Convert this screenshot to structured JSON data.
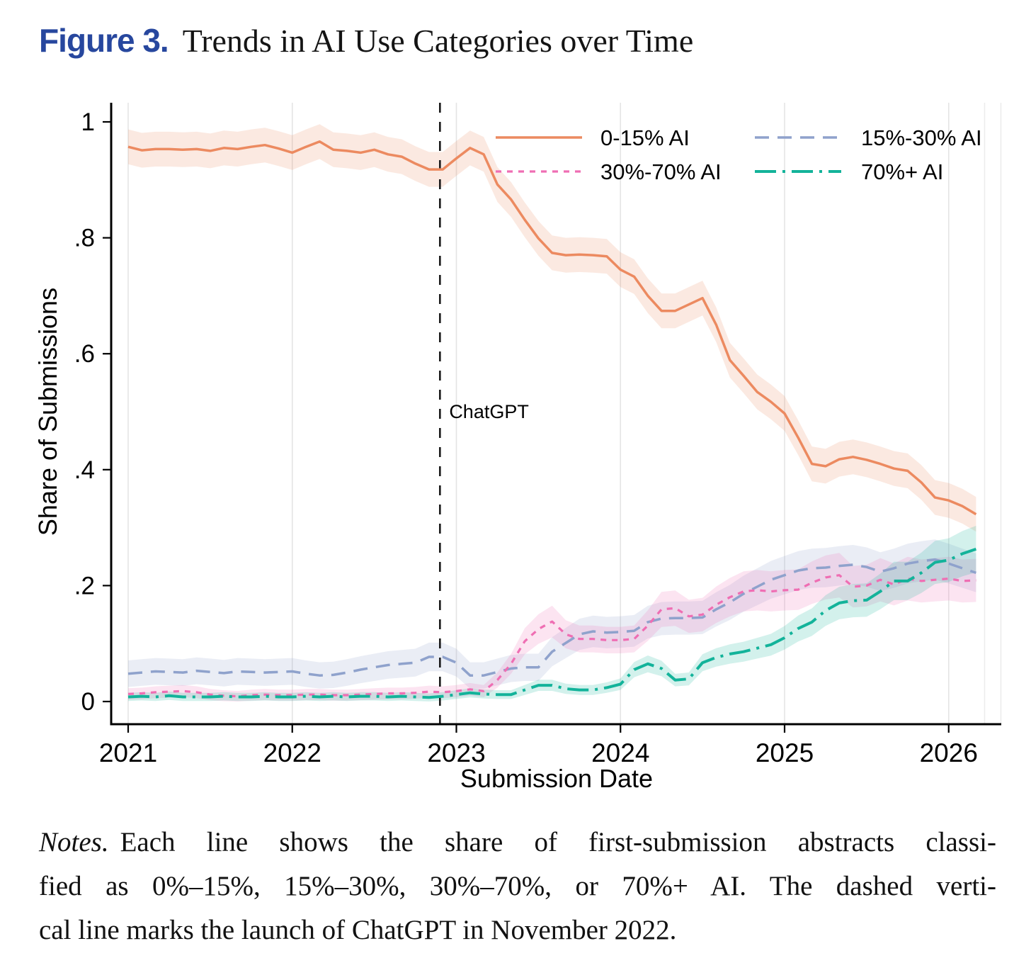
{
  "title": {
    "figure_label": "Figure 3.",
    "text": "Trends in AI Use Categories over Time",
    "accent_color": "#27479E"
  },
  "notes": {
    "label": "Notes.",
    "lines": [
      "Each line shows the share of first-submission abstracts classi-",
      "fied as 0%–15%, 15%–30%, 30%–70%, or 70%+ AI. The dashed verti-",
      "cal line marks the launch of ChatGPT in November 2022."
    ]
  },
  "chart_data": {
    "type": "line",
    "x_axis": {
      "label": "Submission Date",
      "ticks": [
        "2021",
        "2022",
        "2023",
        "2024",
        "2025",
        "2026"
      ],
      "range_years": [
        2020.9,
        2026.35
      ]
    },
    "y_axis": {
      "label": "Share of Submissions",
      "range": [
        0,
        1
      ],
      "ticks": [
        {
          "v": 0.0,
          "label": "0"
        },
        {
          "v": 0.2,
          "label": ".2"
        },
        {
          "v": 0.4,
          "label": ".4"
        },
        {
          "v": 0.6,
          "label": ".6"
        },
        {
          "v": 0.8,
          "label": ".8"
        },
        {
          "v": 1.0,
          "label": "1"
        }
      ]
    },
    "x_start": "2021-01",
    "x_step_months": 1,
    "annotation": {
      "label": "ChatGPT",
      "date": "2022-11",
      "x_year": 2022.9
    },
    "grid_color": "#E4E4E4",
    "series": [
      {
        "name": "0-15% AI",
        "color": "#EC8A60",
        "dash": "solid",
        "band_half": [
          0.03,
          0.0
        ],
        "values": [
          0.957,
          0.951,
          0.953,
          0.953,
          0.952,
          0.953,
          0.95,
          0.955,
          0.953,
          0.957,
          0.96,
          0.954,
          0.947,
          0.957,
          0.966,
          0.952,
          0.95,
          0.947,
          0.952,
          0.944,
          0.94,
          0.928,
          0.918,
          0.918,
          0.937,
          0.955,
          0.944,
          0.892,
          0.866,
          0.831,
          0.799,
          0.774,
          0.77,
          0.771,
          0.77,
          0.768,
          0.745,
          0.733,
          0.7,
          0.674,
          0.674,
          0.685,
          0.696,
          0.65,
          0.589,
          0.562,
          0.534,
          0.517,
          0.497,
          0.455,
          0.41,
          0.406,
          0.418,
          0.422,
          0.417,
          0.41,
          0.402,
          0.398,
          0.378,
          0.352,
          0.347,
          0.337,
          0.323
        ]
      },
      {
        "name": "15%-30% AI",
        "color": "#8FA2CC",
        "dash": "20 12",
        "band_half": [
          0.02,
          0.06
        ],
        "values": [
          0.048,
          0.05,
          0.052,
          0.051,
          0.05,
          0.053,
          0.051,
          0.049,
          0.052,
          0.051,
          0.05,
          0.051,
          0.052,
          0.048,
          0.045,
          0.046,
          0.05,
          0.055,
          0.059,
          0.063,
          0.065,
          0.067,
          0.077,
          0.077,
          0.067,
          0.045,
          0.045,
          0.051,
          0.057,
          0.059,
          0.059,
          0.086,
          0.101,
          0.116,
          0.121,
          0.119,
          0.12,
          0.122,
          0.137,
          0.143,
          0.144,
          0.144,
          0.145,
          0.159,
          0.171,
          0.186,
          0.198,
          0.21,
          0.218,
          0.226,
          0.23,
          0.231,
          0.234,
          0.236,
          0.232,
          0.224,
          0.23,
          0.238,
          0.242,
          0.245,
          0.238,
          0.23,
          0.222
        ]
      },
      {
        "name": "30%-70% AI",
        "color": "#EF6EB3",
        "dash": "8 8",
        "band_half": [
          0.008,
          0.14
        ],
        "values": [
          0.013,
          0.014,
          0.016,
          0.017,
          0.018,
          0.016,
          0.012,
          0.01,
          0.009,
          0.011,
          0.012,
          0.011,
          0.011,
          0.012,
          0.012,
          0.011,
          0.011,
          0.012,
          0.013,
          0.014,
          0.014,
          0.015,
          0.017,
          0.016,
          0.018,
          0.021,
          0.018,
          0.037,
          0.065,
          0.104,
          0.125,
          0.138,
          0.116,
          0.108,
          0.108,
          0.106,
          0.106,
          0.108,
          0.131,
          0.159,
          0.161,
          0.147,
          0.15,
          0.167,
          0.18,
          0.19,
          0.192,
          0.19,
          0.192,
          0.193,
          0.205,
          0.214,
          0.218,
          0.198,
          0.2,
          0.21,
          0.202,
          0.212,
          0.208,
          0.21,
          0.212,
          0.208,
          0.209
        ]
      },
      {
        "name": "70%+ AI",
        "color": "#13B39A",
        "dash": "30 9 4 9",
        "band_half": [
          0.006,
          0.13
        ],
        "values": [
          0.008,
          0.009,
          0.008,
          0.01,
          0.008,
          0.008,
          0.008,
          0.009,
          0.008,
          0.008,
          0.009,
          0.008,
          0.008,
          0.009,
          0.008,
          0.009,
          0.008,
          0.009,
          0.009,
          0.008,
          0.009,
          0.008,
          0.007,
          0.009,
          0.012,
          0.015,
          0.013,
          0.012,
          0.012,
          0.02,
          0.028,
          0.028,
          0.022,
          0.02,
          0.02,
          0.024,
          0.03,
          0.055,
          0.065,
          0.057,
          0.037,
          0.039,
          0.067,
          0.076,
          0.082,
          0.086,
          0.092,
          0.098,
          0.11,
          0.126,
          0.137,
          0.157,
          0.17,
          0.174,
          0.175,
          0.19,
          0.208,
          0.208,
          0.222,
          0.24,
          0.244,
          0.255,
          0.263
        ]
      }
    ]
  }
}
